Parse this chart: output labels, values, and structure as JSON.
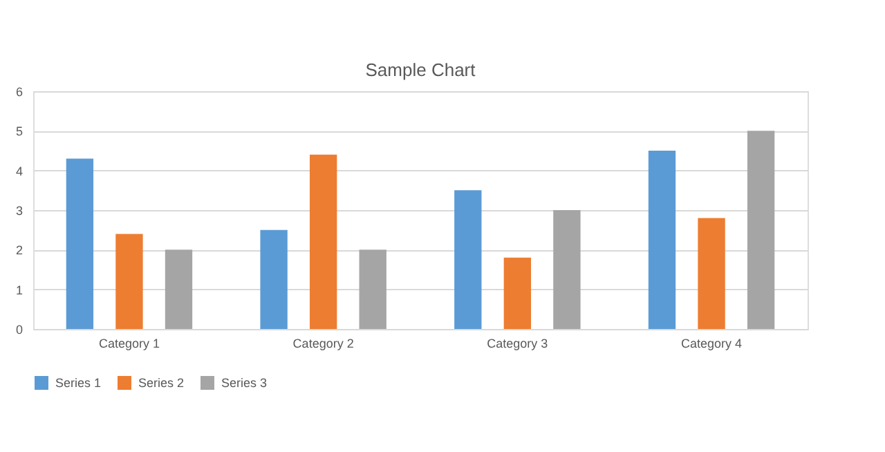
{
  "chart_data": {
    "type": "bar",
    "title": "Sample Chart",
    "categories": [
      "Category 1",
      "Category 2",
      "Category 3",
      "Category 4"
    ],
    "series": [
      {
        "name": "Series 1",
        "color": "#5b9bd5",
        "values": [
          4.3,
          2.5,
          3.5,
          4.5
        ]
      },
      {
        "name": "Series 2",
        "color": "#ed7d31",
        "values": [
          2.4,
          4.4,
          1.8,
          2.8
        ]
      },
      {
        "name": "Series 3",
        "color": "#a5a5a5",
        "values": [
          2,
          2,
          3,
          5
        ]
      }
    ],
    "ylim": [
      0,
      6
    ],
    "yticks": [
      0,
      1,
      2,
      3,
      4,
      5,
      6
    ],
    "grid": "y",
    "legend": "bottom"
  }
}
